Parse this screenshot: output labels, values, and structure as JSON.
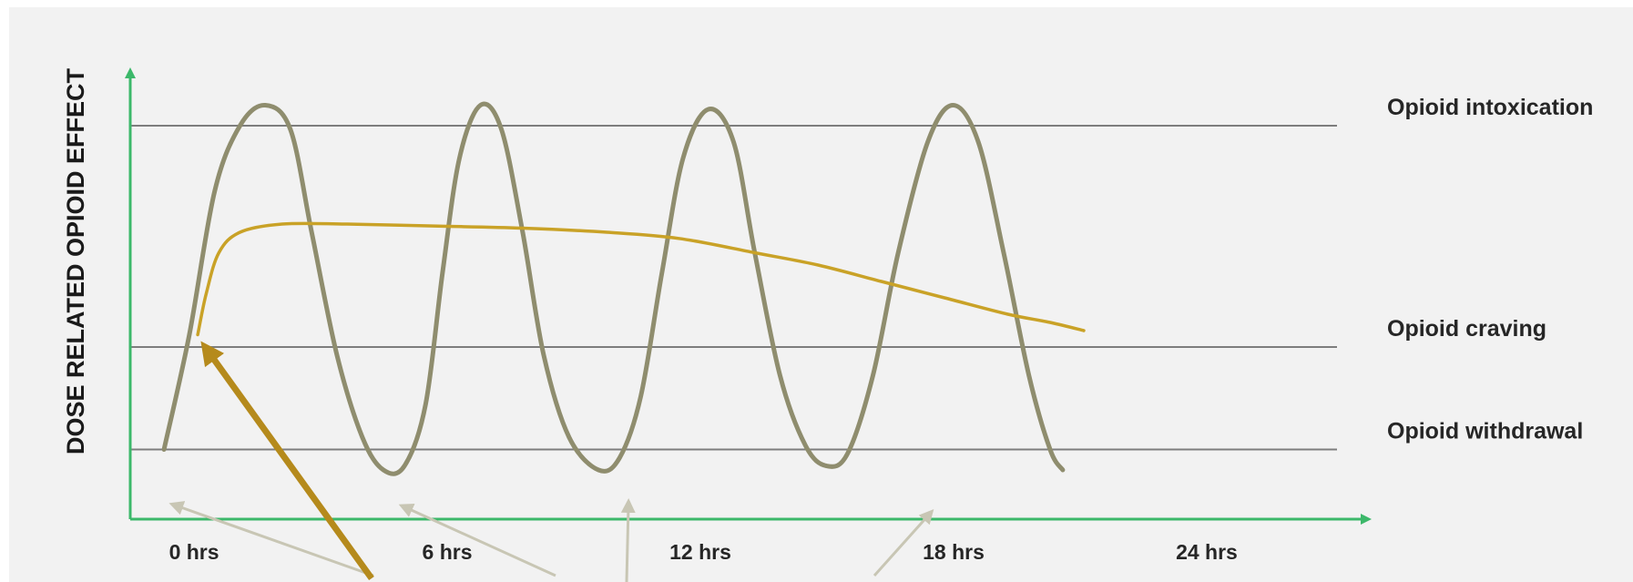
{
  "chart_data": {
    "type": "line",
    "title": "",
    "ylabel": "DOSE RELATED OPIOID  EFFECT",
    "xlabel": "",
    "x_ticks": [
      "0 hrs",
      "6 hrs",
      "12 hrs",
      "18 hrs",
      "24 hrs"
    ],
    "x_tick_values": [
      0,
      6,
      12,
      18,
      24
    ],
    "xlim": [
      -0.8,
      27.8
    ],
    "ylim": [
      -0.1,
      1.0
    ],
    "levels": [
      {
        "label": "Opioid intoxication",
        "value": 0.86
      },
      {
        "label": "Opioid craving",
        "value": 0.32
      },
      {
        "label": "Opioid withdrawal",
        "value": 0.07
      }
    ],
    "series": [
      {
        "color": "#8f8d6e",
        "points": [
          [
            0.0,
            0.07
          ],
          [
            0.6,
            0.35
          ],
          [
            1.2,
            0.7
          ],
          [
            1.8,
            0.86
          ],
          [
            2.4,
            0.91
          ],
          [
            3.0,
            0.85
          ],
          [
            3.5,
            0.6
          ],
          [
            4.1,
            0.3
          ],
          [
            4.7,
            0.1
          ],
          [
            5.2,
            0.02
          ],
          [
            5.7,
            0.03
          ],
          [
            6.2,
            0.18
          ],
          [
            6.6,
            0.5
          ],
          [
            7.0,
            0.78
          ],
          [
            7.5,
            0.91
          ],
          [
            8.0,
            0.85
          ],
          [
            8.5,
            0.6
          ],
          [
            9.0,
            0.3
          ],
          [
            9.6,
            0.1
          ],
          [
            10.3,
            0.02
          ],
          [
            10.8,
            0.05
          ],
          [
            11.3,
            0.2
          ],
          [
            11.8,
            0.5
          ],
          [
            12.3,
            0.78
          ],
          [
            12.9,
            0.9
          ],
          [
            13.5,
            0.82
          ],
          [
            14.0,
            0.55
          ],
          [
            14.6,
            0.25
          ],
          [
            15.2,
            0.08
          ],
          [
            15.7,
            0.03
          ],
          [
            16.2,
            0.06
          ],
          [
            16.8,
            0.25
          ],
          [
            17.4,
            0.55
          ],
          [
            18.1,
            0.82
          ],
          [
            18.7,
            0.91
          ],
          [
            19.3,
            0.82
          ],
          [
            19.9,
            0.55
          ],
          [
            20.5,
            0.25
          ],
          [
            21.0,
            0.07
          ],
          [
            21.3,
            0.02
          ]
        ]
      },
      {
        "color": "#c9a227",
        "points": [
          [
            0.8,
            0.35
          ],
          [
            1.0,
            0.45
          ],
          [
            1.3,
            0.55
          ],
          [
            1.8,
            0.6
          ],
          [
            2.8,
            0.62
          ],
          [
            4.3,
            0.62
          ],
          [
            6.5,
            0.615
          ],
          [
            8.5,
            0.61
          ],
          [
            10.5,
            0.6
          ],
          [
            12.2,
            0.585
          ],
          [
            14.0,
            0.55
          ],
          [
            15.5,
            0.52
          ],
          [
            17.0,
            0.48
          ],
          [
            18.5,
            0.44
          ],
          [
            20.0,
            0.4
          ],
          [
            21.0,
            0.38
          ],
          [
            21.8,
            0.36
          ]
        ]
      }
    ],
    "annotations": {
      "drug_arrow_color": "#b58a1c",
      "dose_arrow_color": "#c8c6b4"
    },
    "axis_color": "#3cb86a",
    "grid": false,
    "legend": "none"
  }
}
